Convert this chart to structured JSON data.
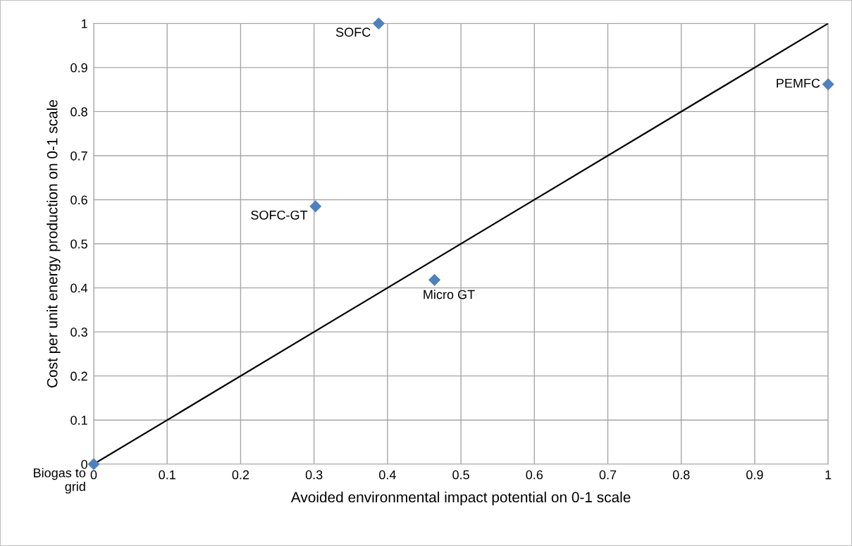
{
  "chart_data": {
    "type": "scatter",
    "xlabel": "Avoided environmental impact potential on 0-1 scale",
    "ylabel": "Cost per unit energy production on 0-1 scale",
    "series": [
      {
        "color": "#4f81bd",
        "marker": "diamond",
        "x": [
          0,
          0.302,
          0.388,
          0.464,
          1
        ],
        "values": [
          0,
          0.585,
          1,
          0.418,
          0.862
        ]
      },
      {
        "type": "line",
        "color": "#000000",
        "marker": "none",
        "line_style": "solid",
        "x": [
          0,
          1
        ],
        "values": [
          0,
          1
        ]
      }
    ],
    "annotations": [
      {
        "text": "Biogas to\ngrid",
        "x": 0,
        "y": 0
      },
      {
        "text": "SOFC-GT",
        "x": 0.302,
        "y": 0.585
      },
      {
        "text": "SOFC",
        "x": 0.388,
        "y": 1
      },
      {
        "text": "Micro GT",
        "x": 0.464,
        "y": 0.418
      },
      {
        "text": "PEMFC",
        "x": 1,
        "y": 0.862
      }
    ],
    "xlim": [
      0,
      1
    ],
    "ylim": [
      0,
      1
    ],
    "xticks": [
      0,
      0.1,
      0.2,
      0.3,
      0.4,
      0.5,
      0.6,
      0.7,
      0.8,
      0.9,
      1
    ],
    "yticks": [
      0,
      0.1,
      0.2,
      0.3,
      0.4,
      0.5,
      0.6,
      0.7,
      0.8,
      0.9,
      1
    ],
    "grid": true,
    "legend": false
  }
}
